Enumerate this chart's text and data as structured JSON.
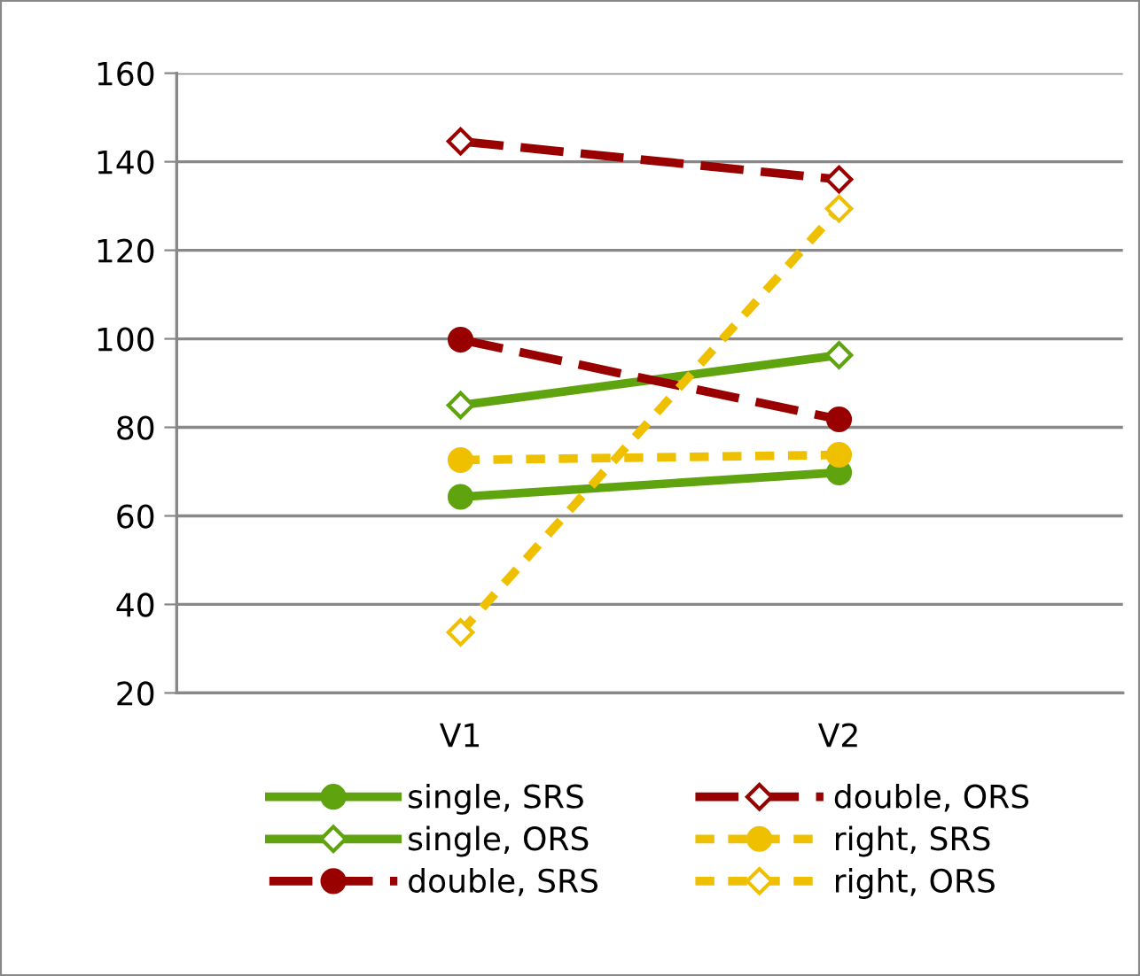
{
  "chart_data": {
    "type": "line",
    "categories": [
      "V1",
      "V2"
    ],
    "ylim": [
      20,
      160
    ],
    "yticks": [
      20,
      40,
      60,
      80,
      100,
      120,
      140,
      160
    ],
    "grid": "y",
    "legend": "bottom",
    "series": [
      {
        "name": "single, SRS",
        "color": "#5fa30f",
        "values": [
          64.3,
          69.8
        ],
        "marker": "circle",
        "line_style": "solid"
      },
      {
        "name": "single, ORS",
        "color": "#5fa30f",
        "values": [
          85,
          96.3
        ],
        "marker": "diamond",
        "line_style": "solid"
      },
      {
        "name": "double, SRS",
        "color": "#990000",
        "values": [
          99.8,
          81.8
        ],
        "marker": "circle",
        "line_style": "dashed"
      },
      {
        "name": "double, ORS",
        "color": "#990000",
        "values": [
          144.6,
          136
        ],
        "marker": "diamond",
        "line_style": "dashed"
      },
      {
        "name": "right, SRS",
        "color": "#eec000",
        "values": [
          72.6,
          73.8
        ],
        "marker": "circle",
        "line_style": "dotted"
      },
      {
        "name": "right, ORS",
        "color": "#eec000",
        "values": [
          33.7,
          129.4
        ],
        "marker": "diamond",
        "line_style": "dotted"
      }
    ]
  }
}
